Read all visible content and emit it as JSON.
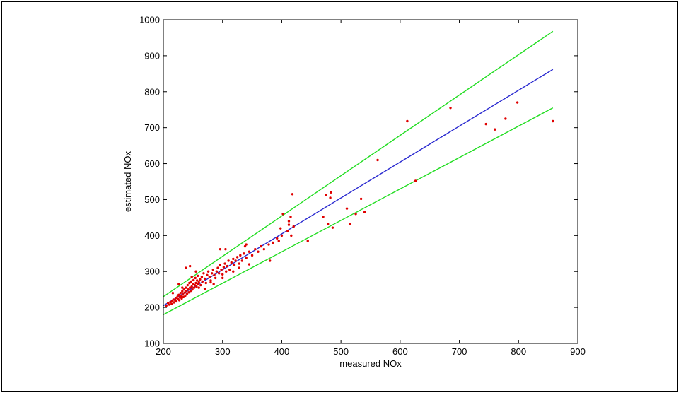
{
  "chart_data": {
    "type": "scatter",
    "title": "",
    "xlabel": "measured NOx",
    "ylabel": "estimated NOx",
    "xlim": [
      200,
      900
    ],
    "ylim": [
      100,
      1000
    ],
    "xticks": [
      200,
      300,
      400,
      500,
      600,
      700,
      800,
      900
    ],
    "yticks": [
      100,
      200,
      300,
      400,
      500,
      600,
      700,
      800,
      900,
      1000
    ],
    "grid": false,
    "legend": "none",
    "colors": {
      "points": "#e00000",
      "fit_line": "#2a2ad0",
      "bound_lines": "#22dd22"
    },
    "series": [
      {
        "kind": "points",
        "color": "#e00000",
        "points": [
          [
            205,
            205
          ],
          [
            208,
            212
          ],
          [
            210,
            208
          ],
          [
            212,
            215
          ],
          [
            214,
            210
          ],
          [
            215,
            218
          ],
          [
            217,
            222
          ],
          [
            218,
            214
          ],
          [
            220,
            220
          ],
          [
            221,
            226
          ],
          [
            222,
            217
          ],
          [
            224,
            230
          ],
          [
            225,
            223
          ],
          [
            226,
            235
          ],
          [
            227,
            220
          ],
          [
            228,
            228
          ],
          [
            229,
            240
          ],
          [
            230,
            232
          ],
          [
            231,
            225
          ],
          [
            232,
            245
          ],
          [
            233,
            236
          ],
          [
            234,
            229
          ],
          [
            235,
            250
          ],
          [
            236,
            241
          ],
          [
            237,
            233
          ],
          [
            238,
            255
          ],
          [
            239,
            246
          ],
          [
            240,
            238
          ],
          [
            241,
            262
          ],
          [
            242,
            250
          ],
          [
            243,
            242
          ],
          [
            244,
            268
          ],
          [
            245,
            255
          ],
          [
            246,
            246
          ],
          [
            247,
            272
          ],
          [
            248,
            258
          ],
          [
            249,
            250
          ],
          [
            250,
            265
          ],
          [
            251,
            276
          ],
          [
            252,
            255
          ],
          [
            253,
            262
          ],
          [
            254,
            282
          ],
          [
            255,
            268
          ],
          [
            256,
            258
          ],
          [
            257,
            275
          ],
          [
            258,
            288
          ],
          [
            259,
            265
          ],
          [
            260,
            270
          ],
          [
            262,
            278
          ],
          [
            263,
            262
          ],
          [
            265,
            285
          ],
          [
            266,
            272
          ],
          [
            268,
            295
          ],
          [
            270,
            280
          ],
          [
            272,
            268
          ],
          [
            274,
            290
          ],
          [
            276,
            300
          ],
          [
            278,
            285
          ],
          [
            280,
            275
          ],
          [
            282,
            295
          ],
          [
            284,
            305
          ],
          [
            286,
            290
          ],
          [
            288,
            282
          ],
          [
            290,
            300
          ],
          [
            292,
            310
          ],
          [
            294,
            295
          ],
          [
            296,
            318
          ],
          [
            298,
            305
          ],
          [
            300,
            292
          ],
          [
            302,
            312
          ],
          [
            304,
            322
          ],
          [
            306,
            300
          ],
          [
            308,
            315
          ],
          [
            310,
            330
          ],
          [
            312,
            305
          ],
          [
            315,
            325
          ],
          [
            318,
            335
          ],
          [
            320,
            318
          ],
          [
            322,
            330
          ],
          [
            325,
            340
          ],
          [
            328,
            322
          ],
          [
            330,
            345
          ],
          [
            333,
            330
          ],
          [
            336,
            350
          ],
          [
            340,
            338
          ],
          [
            345,
            355
          ],
          [
            350,
            345
          ],
          [
            355,
            362
          ],
          [
            360,
            355
          ],
          [
            365,
            370
          ],
          [
            370,
            362
          ],
          [
            378,
            375
          ],
          [
            385,
            380
          ],
          [
            392,
            392
          ],
          [
            400,
            400
          ],
          [
            410,
            412
          ],
          [
            420,
            425
          ],
          [
            216,
            240
          ],
          [
            232,
            255
          ],
          [
            226,
            265
          ],
          [
            245,
            315
          ],
          [
            260,
            255
          ],
          [
            280,
            270
          ],
          [
            296,
            362
          ],
          [
            305,
            362
          ],
          [
            338,
            370
          ],
          [
            340,
            375
          ],
          [
            380,
            330
          ],
          [
            395,
            385
          ],
          [
            398,
            420
          ],
          [
            402,
            460
          ],
          [
            412,
            440
          ],
          [
            415,
            452
          ],
          [
            418,
            515
          ],
          [
            416,
            400
          ],
          [
            412,
            430
          ],
          [
            444,
            385
          ],
          [
            470,
            452
          ],
          [
            475,
            512
          ],
          [
            478,
            432
          ],
          [
            482,
            505
          ],
          [
            483,
            520
          ],
          [
            486,
            422
          ],
          [
            510,
            475
          ],
          [
            515,
            432
          ],
          [
            525,
            460
          ],
          [
            534,
            502
          ],
          [
            540,
            465
          ],
          [
            562,
            610
          ],
          [
            612,
            718
          ],
          [
            626,
            552
          ],
          [
            685,
            755
          ],
          [
            745,
            710
          ],
          [
            760,
            695
          ],
          [
            778,
            725
          ],
          [
            798,
            770
          ],
          [
            858,
            718
          ],
          [
            238,
            310
          ],
          [
            248,
            285
          ],
          [
            255,
            300
          ],
          [
            270,
            252
          ],
          [
            285,
            265
          ],
          [
            300,
            282
          ],
          [
            318,
            300
          ],
          [
            328,
            310
          ],
          [
            345,
            320
          ]
        ]
      },
      {
        "kind": "line",
        "color": "#2a2ad0",
        "x": [
          200,
          858
        ],
        "y": [
          205,
          862
        ]
      },
      {
        "kind": "line",
        "color": "#22dd22",
        "x": [
          200,
          858
        ],
        "y": [
          230,
          968
        ]
      },
      {
        "kind": "line",
        "color": "#22dd22",
        "x": [
          200,
          858
        ],
        "y": [
          180,
          755
        ]
      }
    ]
  }
}
